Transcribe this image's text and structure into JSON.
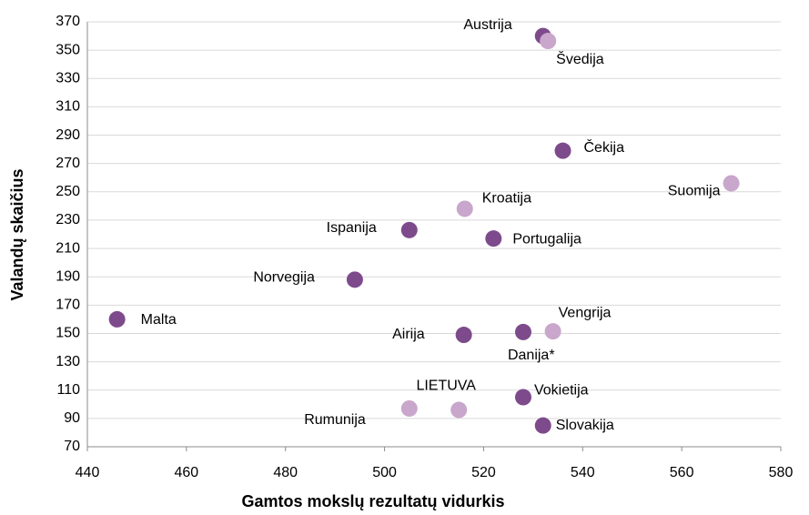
{
  "chart_data": {
    "type": "scatter",
    "x_label": "Gamtos mokslų rezultatų vidurkis",
    "y_label": "Valandų skaičius",
    "xlim": [
      440,
      580
    ],
    "xticks": [
      440,
      460,
      480,
      500,
      520,
      540,
      560,
      580
    ],
    "ylim": [
      70,
      370
    ],
    "yticks": [
      70,
      90,
      110,
      130,
      150,
      170,
      190,
      210,
      230,
      250,
      270,
      290,
      310,
      330,
      350,
      370
    ],
    "grid": true,
    "points": [
      {
        "label": "Austrija",
        "x": 532,
        "y": 360,
        "color": "#7d4b8c"
      },
      {
        "label": "Švedija",
        "x": 533,
        "y": 356.5,
        "color": "#c9a6cb"
      },
      {
        "label": "Čekija",
        "x": 536,
        "y": 279,
        "color": "#7d4b8c"
      },
      {
        "label": "Suomija",
        "x": 570,
        "y": 256,
        "color": "#c9a6cb"
      },
      {
        "label": "Kroatija",
        "x": 516.2,
        "y": 238,
        "color": "#c9a6cb"
      },
      {
        "label": "Ispanija",
        "x": 505,
        "y": 223,
        "color": "#7d4b8c"
      },
      {
        "label": "Portugalija",
        "x": 522,
        "y": 217,
        "color": "#7d4b8c"
      },
      {
        "label": "Norvegija",
        "x": 494,
        "y": 188,
        "color": "#7d4b8c"
      },
      {
        "label": "Malta",
        "x": 446,
        "y": 160,
        "color": "#7d4b8c"
      },
      {
        "label": "Airija",
        "x": 516,
        "y": 149,
        "color": "#7d4b8c"
      },
      {
        "label": "Danija*",
        "x": 528,
        "y": 151,
        "color": "#7d4b8c"
      },
      {
        "label": "Vengrija",
        "x": 534,
        "y": 151.5,
        "color": "#c9a6cb"
      },
      {
        "label": "Vokietija",
        "x": 528,
        "y": 105,
        "color": "#7d4b8c"
      },
      {
        "label": "Slovakija",
        "x": 532,
        "y": 85,
        "color": "#7d4b8c"
      },
      {
        "label": "Rumunija",
        "x": 505,
        "y": 97,
        "color": "#c9a6cb"
      },
      {
        "label": "LIETUVA",
        "x": 515,
        "y": 96,
        "color": "#c9a6cb"
      }
    ]
  }
}
